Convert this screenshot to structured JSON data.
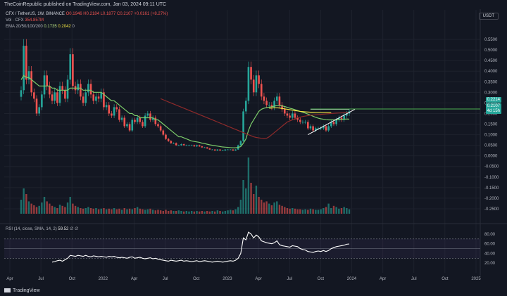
{
  "header": {
    "publisher": "TheCoinRepublic published on TradingView.com, Jan 03, 2024 09:11 UTC"
  },
  "legend": {
    "symbol": "CFX / TetherUS, 1W, BINANCE",
    "ohlc": "O0.1946 H0.2184 L0.1877 C0.2107 +0.0161 (+8.27%)",
    "vol_label": "Vol · CFX",
    "vol_value": "354.857M",
    "ema_label": "EMA 20/50/100/200",
    "ema_v1": "0.1735",
    "ema_v2": "0.2042",
    "ema_v3": "0",
    "rsi_label": "RSI (14, close, SMA, 14, 2)",
    "rsi_value": "59.52",
    "rsi_rest": "∅ ∅"
  },
  "currency": "USDT",
  "price_tags": {
    "upper": "0.2214",
    "current": "0.2107",
    "countdown": "4d 15h"
  },
  "footer": {
    "brand": "TradingView"
  },
  "chart_data": {
    "type": "candlestick",
    "x_axis_labels": [
      "Apr",
      "Jul",
      "Oct",
      "2022",
      "Apr",
      "Jul",
      "Oct",
      "2023",
      "Apr",
      "Jul",
      "Oct",
      "2024",
      "Apr",
      "Jul",
      "Oct",
      "2025"
    ],
    "price_axis_labels": [
      "0.5500",
      "0.5000",
      "0.4500",
      "0.4000",
      "0.3500",
      "0.3000",
      "0.2500",
      "0.2000",
      "0.1500",
      "0.1000",
      "0.0500",
      "0.0000",
      "-0.0500",
      "-0.1000",
      "-0.1500",
      "-0.2000",
      "-0.2500"
    ],
    "rsi_axis_labels": [
      "80.00",
      "60.00",
      "40.00",
      "20.00"
    ],
    "price_ylim": [
      -0.28,
      0.59
    ],
    "rsi_ylim": [
      0,
      90
    ],
    "rsi_band": [
      30,
      70
    ],
    "rsi_midline": 50,
    "resistance_level": 0.2214,
    "current_price": 0.2107,
    "close_prices": [
      0.31,
      0.52,
      0.36,
      0.4,
      0.3,
      0.27,
      0.2,
      0.23,
      0.29,
      0.38,
      0.33,
      0.29,
      0.26,
      0.3,
      0.25,
      0.33,
      0.31,
      0.27,
      0.36,
      0.48,
      0.33,
      0.31,
      0.34,
      0.28,
      0.25,
      0.3,
      0.34,
      0.29,
      0.26,
      0.28,
      0.27,
      0.3,
      0.23,
      0.24,
      0.2,
      0.19,
      0.23,
      0.22,
      0.17,
      0.18,
      0.14,
      0.15,
      0.12,
      0.17,
      0.16,
      0.18,
      0.16,
      0.14,
      0.19,
      0.2,
      0.17,
      0.18,
      0.15,
      0.14,
      0.12,
      0.1,
      0.08,
      0.07,
      0.06,
      0.06,
      0.05,
      0.05,
      0.055,
      0.05,
      0.05,
      0.05,
      0.05,
      0.045,
      0.05,
      0.045,
      0.04,
      0.04,
      0.035,
      0.03,
      0.03,
      0.025,
      0.03,
      0.025,
      0.025,
      0.03,
      0.03,
      0.03,
      0.025,
      0.03,
      0.05,
      0.07,
      0.21,
      0.26,
      0.42,
      0.36,
      0.3,
      0.38,
      0.34,
      0.28,
      0.26,
      0.24,
      0.24,
      0.23,
      0.26,
      0.28,
      0.24,
      0.22,
      0.2,
      0.19,
      0.18,
      0.2,
      0.18,
      0.17,
      0.16,
      0.16,
      0.16,
      0.13,
      0.14,
      0.12,
      0.13,
      0.13,
      0.13,
      0.14,
      0.12,
      0.14,
      0.16,
      0.15,
      0.17,
      0.18,
      0.17,
      0.19,
      0.2,
      0.21
    ],
    "ema_fast": [
      0.36,
      0.38,
      0.37,
      0.37,
      0.36,
      0.35,
      0.34,
      0.33,
      0.33,
      0.33,
      0.33,
      0.33,
      0.32,
      0.32,
      0.31,
      0.31,
      0.31,
      0.31,
      0.31,
      0.32,
      0.32,
      0.32,
      0.32,
      0.32,
      0.31,
      0.31,
      0.31,
      0.31,
      0.3,
      0.3,
      0.3,
      0.3,
      0.29,
      0.28,
      0.27,
      0.26,
      0.26,
      0.25,
      0.24,
      0.23,
      0.22,
      0.21,
      0.2,
      0.2,
      0.19,
      0.19,
      0.18,
      0.18,
      0.18,
      0.18,
      0.18,
      0.18,
      0.17,
      0.17,
      0.16,
      0.15,
      0.14,
      0.13,
      0.12,
      0.11,
      0.1,
      0.09,
      0.09,
      0.085,
      0.08,
      0.075,
      0.07,
      0.068,
      0.066,
      0.064,
      0.06,
      0.058,
      0.055,
      0.052,
      0.05,
      0.048,
      0.046,
      0.044,
      0.042,
      0.041,
      0.04,
      0.039,
      0.038,
      0.038,
      0.04,
      0.044,
      0.06,
      0.08,
      0.12,
      0.15,
      0.17,
      0.19,
      0.21,
      0.22,
      0.225,
      0.228,
      0.23,
      0.232,
      0.235,
      0.238,
      0.238,
      0.236,
      0.233,
      0.229,
      0.225,
      0.222,
      0.218,
      0.214,
      0.21,
      0.206,
      0.202,
      0.197,
      0.192,
      0.187,
      0.182,
      0.178,
      0.175,
      0.173,
      0.171,
      0.17,
      0.17,
      0.17,
      0.17,
      0.171,
      0.172,
      0.173,
      0.174,
      0.1735
    ],
    "ema_slow_start": 0.27,
    "ema_slow": [
      0.27,
      0.265,
      0.26,
      0.255,
      0.25,
      0.245,
      0.24,
      0.235,
      0.23,
      0.225,
      0.22,
      0.215,
      0.21,
      0.205,
      0.2,
      0.195,
      0.19,
      0.185,
      0.18,
      0.175,
      0.17,
      0.165,
      0.16,
      0.155,
      0.15,
      0.145,
      0.14,
      0.135,
      0.13,
      0.125,
      0.12,
      0.115,
      0.11,
      0.105,
      0.1,
      0.095,
      0.09,
      0.087,
      0.085,
      0.083,
      0.082,
      0.083,
      0.09,
      0.1,
      0.11,
      0.12,
      0.13,
      0.14,
      0.15,
      0.16,
      0.165,
      0.17,
      0.175,
      0.18,
      0.183,
      0.186,
      0.188,
      0.19,
      0.192,
      0.193,
      0.194,
      0.195,
      0.196,
      0.197,
      0.198,
      0.199,
      0.2,
      0.201,
      0.202,
      0.2025,
      0.203,
      0.2035,
      0.204,
      0.2042
    ],
    "ema_slow_start_index": 54,
    "yellow_ema": [
      0.225,
      0.226,
      0.227,
      0.227,
      0.226,
      0.224,
      0.222,
      0.22,
      0.218,
      0.216,
      0.214,
      0.212,
      0.21,
      0.209,
      0.208,
      0.207,
      0.206,
      0.206,
      0.205,
      0.205,
      0.205,
      0.205,
      0.205,
      0.205,
      0.2042
    ],
    "yellow_ema_start_index": 96,
    "triangle": {
      "apex_index": 127,
      "apex_price": 0.22,
      "upper_start_index": 112,
      "upper_start_price": 0.22,
      "lower_start_index": 111,
      "lower_start_price": 0.1
    },
    "volume": [
      0.25,
      0.45,
      0.35,
      0.22,
      0.18,
      0.15,
      0.12,
      0.14,
      0.2,
      0.3,
      0.22,
      0.18,
      0.14,
      0.12,
      0.1,
      0.16,
      0.14,
      0.12,
      0.2,
      0.3,
      0.18,
      0.14,
      0.12,
      0.1,
      0.09,
      0.1,
      0.12,
      0.1,
      0.09,
      0.1,
      0.08,
      0.09,
      0.1,
      0.08,
      0.09,
      0.08,
      0.1,
      0.08,
      0.09,
      0.07,
      0.1,
      0.08,
      0.09,
      0.08,
      0.1,
      0.12,
      0.09,
      0.08,
      0.07,
      0.08,
      0.09,
      0.07,
      0.06,
      0.07,
      0.06,
      0.05,
      0.07,
      0.05,
      0.06,
      0.05,
      0.05,
      0.06,
      0.05,
      0.04,
      0.05,
      0.04,
      0.05,
      0.04,
      0.05,
      0.04,
      0.05,
      0.04,
      0.05,
      0.04,
      0.05,
      0.04,
      0.06,
      0.05,
      0.04,
      0.05,
      0.06,
      0.07,
      0.06,
      0.08,
      0.12,
      0.25,
      0.6,
      0.45,
      1.0,
      0.55,
      0.35,
      0.5,
      0.3,
      0.25,
      0.2,
      0.22,
      0.18,
      0.15,
      0.2,
      0.22,
      0.16,
      0.14,
      0.12,
      0.1,
      0.09,
      0.1,
      0.09,
      0.08,
      0.08,
      0.07,
      0.08,
      0.07,
      0.09,
      0.08,
      0.07,
      0.07,
      0.08,
      0.1,
      0.12,
      0.18,
      0.1,
      0.14,
      0.12,
      0.09,
      0.1,
      0.12,
      0.1,
      0.08
    ],
    "rsi": [
      null,
      null,
      null,
      null,
      null,
      null,
      null,
      null,
      null,
      null,
      null,
      null,
      22,
      23,
      25,
      26,
      24,
      27,
      30,
      36,
      35,
      34,
      36,
      35,
      34,
      36,
      34,
      33,
      35,
      34,
      33,
      34,
      33,
      32,
      34,
      33,
      34,
      32,
      31,
      32,
      31,
      30,
      32,
      33,
      30,
      31,
      32,
      30,
      29,
      30,
      31,
      29,
      30,
      28,
      27,
      26,
      25,
      24,
      26,
      25,
      24,
      25,
      26,
      24,
      25,
      24,
      23,
      24,
      25,
      23,
      24,
      25,
      24,
      23,
      22,
      23,
      24,
      23,
      22,
      23,
      24,
      25,
      24,
      26,
      30,
      40,
      72,
      68,
      84,
      80,
      72,
      78,
      74,
      66,
      64,
      62,
      61,
      60,
      62,
      66,
      58,
      56,
      55,
      54,
      53,
      56,
      55,
      54,
      50,
      48,
      47,
      44,
      43,
      42,
      44,
      45,
      44,
      46,
      44,
      46,
      50,
      52,
      54,
      55,
      56,
      57,
      59,
      59.52
    ]
  }
}
